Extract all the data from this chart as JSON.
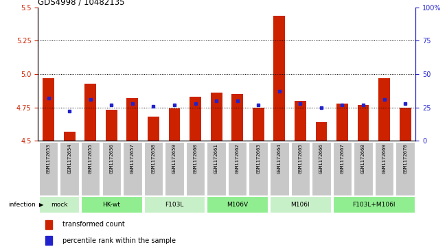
{
  "title": "GDS4998 / 10482135",
  "samples": [
    "GSM1172653",
    "GSM1172654",
    "GSM1172655",
    "GSM1172656",
    "GSM1172657",
    "GSM1172658",
    "GSM1172659",
    "GSM1172660",
    "GSM1172661",
    "GSM1172662",
    "GSM1172663",
    "GSM1172664",
    "GSM1172665",
    "GSM1172666",
    "GSM1172667",
    "GSM1172668",
    "GSM1172669",
    "GSM1172670"
  ],
  "transformed_count": [
    4.97,
    4.57,
    4.93,
    4.73,
    4.82,
    4.68,
    4.74,
    4.83,
    4.86,
    4.85,
    4.75,
    5.44,
    4.8,
    4.64,
    4.78,
    4.77,
    4.97,
    4.75
  ],
  "percentile_rank": [
    32,
    22,
    31,
    27,
    28,
    26,
    27,
    28,
    30,
    30,
    27,
    37,
    28,
    25,
    27,
    27,
    31,
    28
  ],
  "groups": [
    {
      "label": "mock",
      "start": 0,
      "end": 2,
      "color": "#c8f0c8"
    },
    {
      "label": "HK-wt",
      "start": 2,
      "end": 5,
      "color": "#90ee90"
    },
    {
      "label": "F103L",
      "start": 5,
      "end": 8,
      "color": "#c8f0c8"
    },
    {
      "label": "M106V",
      "start": 8,
      "end": 11,
      "color": "#90ee90"
    },
    {
      "label": "M106I",
      "start": 11,
      "end": 14,
      "color": "#c8f0c8"
    },
    {
      "label": "F103L+M106I",
      "start": 14,
      "end": 18,
      "color": "#90ee90"
    }
  ],
  "ylim_left": [
    4.5,
    5.5
  ],
  "ylim_right": [
    0,
    100
  ],
  "yticks_left": [
    4.5,
    4.75,
    5.0,
    5.25,
    5.5
  ],
  "yticks_right": [
    0,
    25,
    50,
    75,
    100
  ],
  "ytick_labels_right": [
    "0",
    "25",
    "50",
    "75",
    "100%"
  ],
  "hlines": [
    4.75,
    5.0,
    5.25
  ],
  "bar_color": "#cc2200",
  "dot_color": "#2222cc",
  "bar_width": 0.55,
  "bar_base": 4.5,
  "sample_cell_color": "#c8c8c8",
  "legend_items": [
    {
      "label": "transformed count",
      "color": "#cc2200"
    },
    {
      "label": "percentile rank within the sample",
      "color": "#2222cc"
    }
  ]
}
